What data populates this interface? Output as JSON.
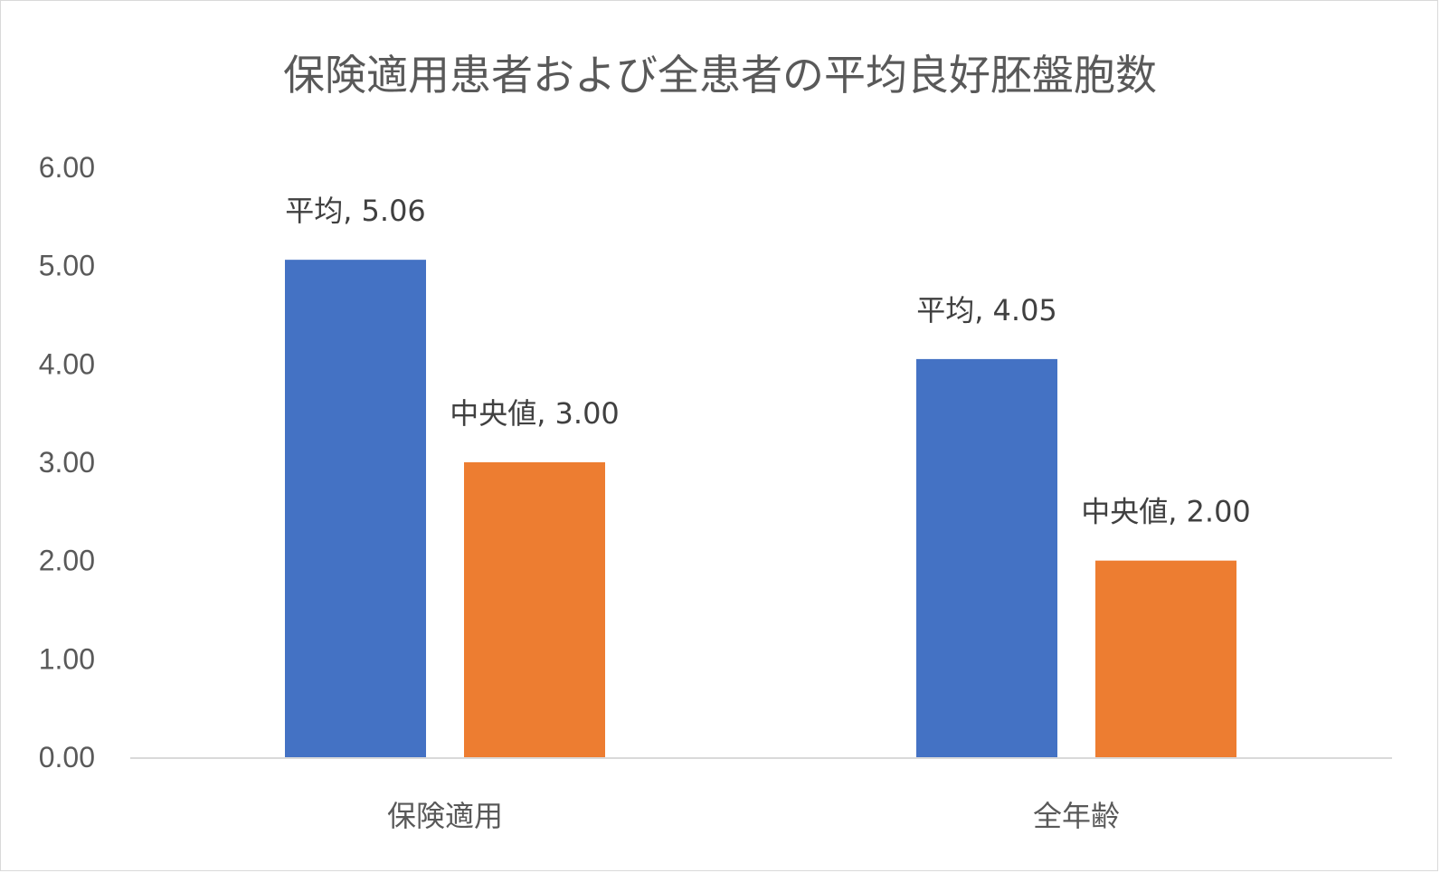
{
  "chart_data": {
    "type": "bar",
    "title": "保険適用患者および全患者の平均良好胚盤胞数",
    "categories": [
      "保険適用",
      "全年齢"
    ],
    "series": [
      {
        "name": "平均",
        "values": [
          5.06,
          4.05
        ],
        "labels": [
          "平均, 5.06",
          "平均, 4.05"
        ],
        "color": "#4472C4"
      },
      {
        "name": "中央値",
        "values": [
          3.0,
          2.0
        ],
        "labels": [
          "中央値, 3.00",
          "中央値, 2.00"
        ],
        "color": "#ED7D31"
      }
    ],
    "ylim": [
      0,
      6
    ],
    "yticks": [
      "0.00",
      "1.00",
      "2.00",
      "3.00",
      "4.00",
      "5.00",
      "6.00"
    ],
    "grid": false,
    "legend": "none",
    "axis_color": "#d9d9d9"
  }
}
